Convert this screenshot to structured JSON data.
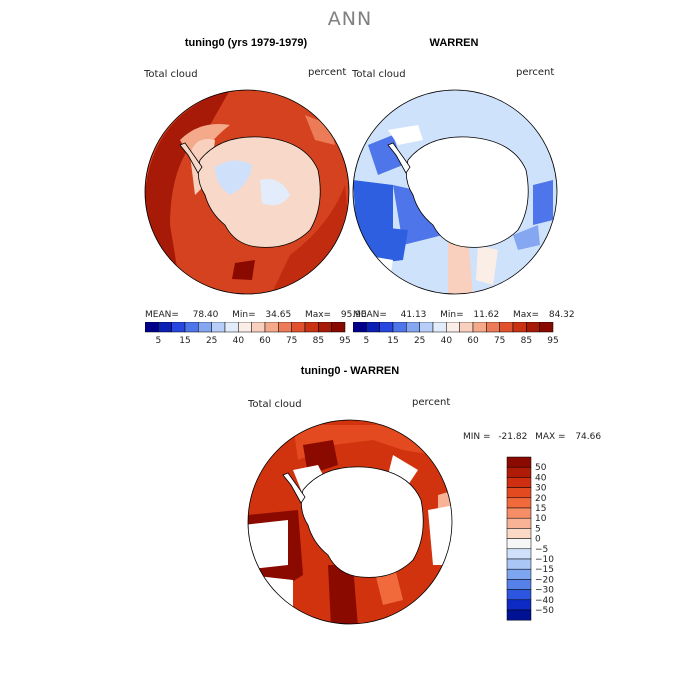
{
  "title": "ANN",
  "colors": {
    "land": "#ffffff",
    "missing": "#ffffff",
    "coast": "#000000"
  },
  "chart_data": [
    {
      "type": "heatmap",
      "panel": "top-left",
      "title": "tuning0 (yrs 1979-1979)",
      "variable": "Total cloud",
      "units": "percent",
      "stats": {
        "mean_label": "MEAN=",
        "mean": "78.40",
        "min_label": "Min=",
        "min": "34.65",
        "max_label": "Max=",
        "max": "95.90"
      },
      "colorbar": {
        "ticks": [
          "5",
          "15",
          "25",
          "40",
          "60",
          "75",
          "85",
          "95"
        ],
        "colors": [
          "#00008b",
          "#0a1fb4",
          "#2747e0",
          "#4f75ea",
          "#85a7f2",
          "#b7cff8",
          "#e2ecfb",
          "#fbeee6",
          "#f8d0bd",
          "#f4a98a",
          "#ec7b57",
          "#e0522e",
          "#c93314",
          "#a81a08",
          "#870a00"
        ]
      }
    },
    {
      "type": "heatmap",
      "panel": "top-right",
      "title": "WARREN",
      "variable": "Total cloud",
      "units": "percent",
      "stats": {
        "mean_label": "MEAN=",
        "mean": "41.13",
        "min_label": "Min=",
        "min": "11.62",
        "max_label": "Max=",
        "max": "84.32"
      },
      "colorbar": {
        "ticks": [
          "5",
          "15",
          "25",
          "40",
          "60",
          "75",
          "85",
          "95"
        ],
        "colors": [
          "#00008b",
          "#0a1fb4",
          "#2747e0",
          "#4f75ea",
          "#85a7f2",
          "#b7cff8",
          "#e2ecfb",
          "#fbeee6",
          "#f8d0bd",
          "#f4a98a",
          "#ec7b57",
          "#e0522e",
          "#c93314",
          "#a81a08",
          "#870a00"
        ]
      }
    },
    {
      "type": "heatmap",
      "panel": "bottom",
      "title": "tuning0 - WARREN",
      "variable": "Total cloud",
      "units": "percent",
      "stats": {
        "min_label": "MIN =",
        "min": "-21.82",
        "max_label": "MAX =",
        "max": "74.66"
      },
      "colorbar": {
        "ticks": [
          "50",
          "40",
          "30",
          "20",
          "15",
          "10",
          "5",
          "0",
          "−5",
          "−10",
          "−15",
          "−20",
          "−30",
          "−40",
          "−50"
        ],
        "colors": [
          "#8b0a00",
          "#b01b07",
          "#cf2f10",
          "#e44a20",
          "#f06a3c",
          "#f58d66",
          "#f8b396",
          "#fcd8c7",
          "#f6f6f6",
          "#cfe0fa",
          "#a9c6f5",
          "#7ea5ef",
          "#5580e8",
          "#2c55e0",
          "#0d2bc4",
          "#001293"
        ]
      }
    }
  ]
}
